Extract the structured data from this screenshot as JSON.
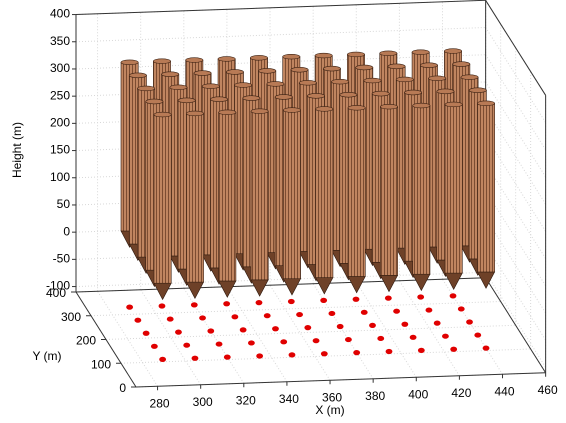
{
  "chart_data": {
    "type": "pile-3d",
    "xlabel": "X (m)",
    "ylabel": "Y (m)",
    "zlabel": "Height (m)",
    "x": [
      290,
      305,
      320,
      335,
      350,
      365,
      380,
      395,
      410,
      425,
      440,
      290,
      305,
      320,
      335,
      350,
      365,
      380,
      395,
      410,
      425,
      440,
      290,
      305,
      320,
      335,
      350,
      365,
      380,
      395,
      410,
      425,
      440,
      290,
      305,
      320,
      335,
      350,
      365,
      380,
      395,
      410,
      425,
      440,
      290,
      305,
      320,
      335,
      350,
      365,
      380,
      395,
      410,
      425,
      440
    ],
    "y": [
      330,
      330,
      330,
      330,
      330,
      330,
      330,
      330,
      330,
      330,
      330,
      275,
      275,
      275,
      275,
      275,
      275,
      275,
      275,
      275,
      275,
      275,
      220,
      220,
      220,
      220,
      220,
      220,
      220,
      220,
      220,
      220,
      220,
      165,
      165,
      165,
      165,
      165,
      165,
      165,
      165,
      165,
      165,
      165,
      110,
      110,
      110,
      110,
      110,
      110,
      110,
      110,
      110,
      110,
      110
    ],
    "pile_top": 340,
    "pile_bottom": 0,
    "color": "#b87a55",
    "dot_color": "#e00000",
    "xlim": [
      270,
      460
    ],
    "ylim": [
      0,
      400
    ],
    "zlim": [
      -110,
      400
    ],
    "xticks": [
      280,
      300,
      320,
      340,
      360,
      380,
      400,
      420,
      440,
      460
    ],
    "yticks": [
      0,
      100,
      200,
      300,
      400
    ],
    "zticks": [
      -100,
      -50,
      0,
      50,
      100,
      150,
      200,
      250,
      300,
      350,
      400
    ],
    "grid": true
  }
}
